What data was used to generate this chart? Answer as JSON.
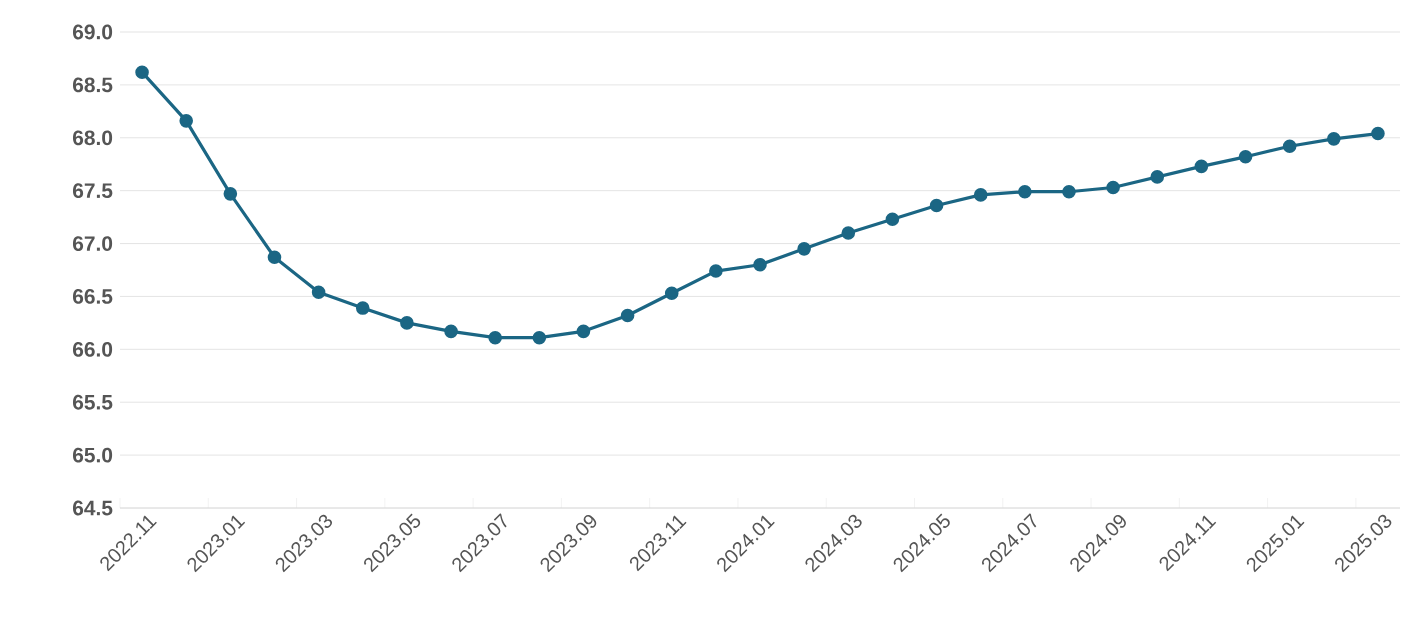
{
  "chart_data": {
    "type": "line",
    "categories": [
      "2022.11",
      null,
      "2023.01",
      null,
      "2023.03",
      null,
      "2023.05",
      null,
      "2023.07",
      null,
      "2023.09",
      null,
      "2023.11",
      null,
      "2024.01",
      null,
      "2024.03",
      null,
      "2024.05",
      null,
      "2024.07",
      null,
      "2024.09",
      null,
      "2024.11",
      null,
      "2025.01",
      null,
      "2025.03"
    ],
    "series": [
      {
        "color": "#1b6684",
        "values": [
          68.62,
          68.16,
          67.47,
          66.87,
          66.54,
          66.39,
          66.25,
          66.17,
          66.11,
          66.11,
          66.17,
          66.32,
          66.53,
          66.74,
          66.8,
          66.95,
          67.1,
          67.23,
          67.36,
          67.46,
          67.49,
          67.49,
          67.53,
          67.63,
          67.73,
          67.82,
          67.92,
          67.99,
          68.04
        ]
      }
    ],
    "ylim": [
      64.5,
      69.0
    ],
    "yticks": [
      {
        "value": 64.5,
        "label": "64.5"
      },
      {
        "value": 65,
        "label": "65.0"
      },
      {
        "value": 65.5,
        "label": "65.5"
      },
      {
        "value": 66,
        "label": "66.0"
      },
      {
        "value": 66.5,
        "label": "66.5"
      },
      {
        "value": 67,
        "label": "67.0"
      },
      {
        "value": 67.5,
        "label": "67.5"
      },
      {
        "value": 68,
        "label": "68.0"
      },
      {
        "value": 68.5,
        "label": "68.5"
      },
      {
        "value": 69,
        "label": "69.0"
      }
    ],
    "grid": "y",
    "marker": "circle",
    "line_style": "solid"
  }
}
